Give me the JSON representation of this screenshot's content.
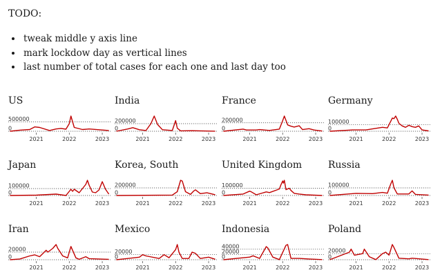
{
  "todo": {
    "title": "TODO:",
    "items": [
      "tweak middle y axis line",
      "mark lockdow day as vertical lines",
      "last number of total cases for each one and last day too"
    ]
  },
  "colors": {
    "line": "#c00000",
    "reference_line": "#333333",
    "text": "#1a1a1a"
  },
  "chart_data": [
    {
      "type": "line",
      "title": "US",
      "xticks": [
        "2021",
        "2022",
        "2023"
      ],
      "yticks": [
        0,
        500000
      ],
      "x": [
        2020.2,
        2020.5,
        2020.8,
        2020.95,
        2021.1,
        2021.4,
        2021.6,
        2021.75,
        2021.9,
        2022.0,
        2022.05,
        2022.15,
        2022.4,
        2022.6,
        2022.9,
        2023.2
      ],
      "y": [
        0,
        60000,
        90000,
        230000,
        200000,
        40000,
        120000,
        150000,
        110000,
        400000,
        800000,
        200000,
        90000,
        120000,
        80000,
        40000
      ],
      "ylim": [
        0,
        800000
      ]
    },
    {
      "type": "line",
      "title": "India",
      "xticks": [
        "2021",
        "2022",
        "2023"
      ],
      "yticks": [
        0,
        200000
      ],
      "x": [
        2020.2,
        2020.55,
        2020.7,
        2020.9,
        2021.1,
        2021.25,
        2021.35,
        2021.45,
        2021.6,
        2021.9,
        2022.0,
        2022.05,
        2022.15,
        2022.5,
        2023.2
      ],
      "y": [
        0,
        60000,
        95000,
        40000,
        20000,
        200000,
        400000,
        180000,
        40000,
        20000,
        280000,
        80000,
        10000,
        15000,
        2000
      ],
      "ylim": [
        0,
        400000
      ]
    },
    {
      "type": "line",
      "title": "France",
      "xticks": [
        "2021",
        "2022",
        "2023"
      ],
      "yticks": [
        0,
        200000
      ],
      "x": [
        2020.2,
        2020.8,
        2020.9,
        2021.2,
        2021.3,
        2021.6,
        2021.9,
        2022.0,
        2022.05,
        2022.15,
        2022.25,
        2022.35,
        2022.5,
        2022.6,
        2022.8,
        2022.95,
        2023.2
      ],
      "y": [
        0,
        50000,
        30000,
        30000,
        40000,
        20000,
        50000,
        250000,
        360000,
        150000,
        120000,
        100000,
        130000,
        40000,
        60000,
        30000,
        5000
      ],
      "ylim": [
        0,
        360000
      ]
    },
    {
      "type": "line",
      "title": "Germany",
      "xticks": [
        "2021",
        "2022",
        "2023"
      ],
      "yticks": [
        0,
        100000
      ],
      "x": [
        2020.2,
        2020.9,
        2021.3,
        2021.8,
        2021.95,
        2022.05,
        2022.1,
        2022.15,
        2022.2,
        2022.25,
        2022.3,
        2022.4,
        2022.5,
        2022.6,
        2022.7,
        2022.8,
        2022.9,
        2023.0,
        2023.2
      ],
      "y": [
        0,
        20000,
        20000,
        60000,
        50000,
        150000,
        200000,
        190000,
        230000,
        180000,
        120000,
        80000,
        60000,
        90000,
        70000,
        60000,
        80000,
        20000,
        5000
      ],
      "ylim": [
        0,
        230000
      ]
    },
    {
      "type": "line",
      "title": "Japan",
      "xticks": [
        "2021",
        "2022",
        "2023"
      ],
      "yticks": [
        0,
        100000
      ],
      "x": [
        2020.2,
        2021.0,
        2021.6,
        2021.9,
        2022.05,
        2022.1,
        2022.15,
        2022.3,
        2022.5,
        2022.55,
        2022.6,
        2022.7,
        2022.8,
        2022.9,
        2023.0,
        2023.1,
        2023.2
      ],
      "y": [
        0,
        5000,
        20000,
        0,
        90000,
        60000,
        90000,
        40000,
        160000,
        220000,
        150000,
        50000,
        40000,
        80000,
        200000,
        90000,
        20000
      ],
      "ylim": [
        0,
        220000
      ]
    },
    {
      "type": "line",
      "title": "Korea, South",
      "xticks": [
        "2021",
        "2022",
        "2023"
      ],
      "yticks": [
        0,
        200000
      ],
      "x": [
        2020.2,
        2021.9,
        2022.05,
        2022.15,
        2022.2,
        2022.3,
        2022.45,
        2022.55,
        2022.6,
        2022.75,
        2022.95,
        2023.2
      ],
      "y": [
        0,
        10000,
        100000,
        400000,
        380000,
        100000,
        30000,
        120000,
        150000,
        50000,
        70000,
        20000
      ],
      "ylim": [
        0,
        400000
      ]
    },
    {
      "type": "line",
      "title": "United Kingdom",
      "xticks": [
        "2021",
        "2022",
        "2023"
      ],
      "yticks": [
        0,
        100000
      ],
      "x": [
        2020.2,
        2020.8,
        2021.0,
        2021.05,
        2021.2,
        2021.5,
        2021.6,
        2021.9,
        2021.95,
        2022.0,
        2022.02,
        2022.05,
        2022.1,
        2022.2,
        2022.25,
        2022.35,
        2022.5,
        2022.7,
        2023.2
      ],
      "y": [
        0,
        20000,
        60000,
        50000,
        10000,
        50000,
        40000,
        90000,
        150000,
        200000,
        170000,
        210000,
        80000,
        100000,
        70000,
        30000,
        20000,
        10000,
        0
      ],
      "ylim": [
        0,
        210000
      ]
    },
    {
      "type": "line",
      "title": "Russia",
      "xticks": [
        "2021",
        "2022",
        "2023"
      ],
      "yticks": [
        0,
        100000
      ],
      "x": [
        2020.2,
        2020.9,
        2021.0,
        2021.5,
        2021.8,
        2021.95,
        2022.05,
        2022.1,
        2022.15,
        2022.25,
        2022.6,
        2022.7,
        2022.8,
        2023.2
      ],
      "y": [
        0,
        25000,
        28000,
        25000,
        40000,
        30000,
        150000,
        200000,
        100000,
        20000,
        20000,
        60000,
        15000,
        5000
      ],
      "ylim": [
        0,
        200000
      ]
    },
    {
      "type": "line",
      "title": "Iran",
      "xticks": [
        "2021",
        "2022",
        "2023"
      ],
      "yticks": [
        0,
        20000
      ],
      "x": [
        2020.2,
        2020.5,
        2020.8,
        2020.95,
        2021.1,
        2021.3,
        2021.35,
        2021.5,
        2021.6,
        2021.65,
        2021.8,
        2021.95,
        2022.05,
        2022.1,
        2022.2,
        2022.3,
        2022.5,
        2022.6,
        2023.2
      ],
      "y": [
        0,
        2000,
        10000,
        13000,
        8000,
        25000,
        20000,
        30000,
        40000,
        30000,
        10000,
        5000,
        35000,
        25000,
        5000,
        1000,
        8000,
        3000,
        1000
      ],
      "ylim": [
        0,
        40000
      ]
    },
    {
      "type": "line",
      "title": "Mexico",
      "xticks": [
        "2021",
        "2022",
        "2023"
      ],
      "yticks": [
        0,
        20000
      ],
      "x": [
        2020.2,
        2020.55,
        2020.9,
        2021.0,
        2021.1,
        2021.5,
        2021.65,
        2021.8,
        2022.0,
        2022.05,
        2022.1,
        2022.2,
        2022.4,
        2022.5,
        2022.6,
        2022.75,
        2023.0,
        2023.2
      ],
      "y": [
        0,
        5000,
        10000,
        20000,
        15000,
        5000,
        20000,
        8000,
        40000,
        60000,
        30000,
        5000,
        5000,
        30000,
        25000,
        5000,
        10000,
        2000
      ],
      "ylim": [
        0,
        60000
      ]
    },
    {
      "type": "line",
      "title": "Indonesia",
      "xticks": [
        "2021",
        "2022",
        "2023"
      ],
      "yticks": [
        0,
        20000,
        40000
      ],
      "x": [
        2020.2,
        2021.0,
        2021.1,
        2021.3,
        2021.5,
        2021.55,
        2021.7,
        2021.9,
        2022.1,
        2022.15,
        2022.25,
        2022.5,
        2022.8,
        2023.2
      ],
      "y": [
        0,
        10000,
        15000,
        5000,
        50000,
        45000,
        10000,
        500,
        55000,
        58000,
        5000,
        5000,
        3000,
        500
      ],
      "ylim": [
        0,
        58000
      ]
    },
    {
      "type": "line",
      "title": "Poland",
      "xticks": [
        "2021",
        "2022",
        "2023"
      ],
      "yticks": [
        0,
        20000
      ],
      "x": [
        2020.2,
        2020.8,
        2020.85,
        2020.95,
        2021.2,
        2021.25,
        2021.4,
        2021.6,
        2021.8,
        2021.9,
        2022.0,
        2022.1,
        2022.15,
        2022.3,
        2022.6,
        2022.7,
        2023.2
      ],
      "y": [
        0,
        25000,
        35000,
        15000,
        20000,
        35000,
        10000,
        500,
        20000,
        25000,
        15000,
        50000,
        40000,
        5000,
        3000,
        5000,
        500
      ],
      "ylim": [
        0,
        50000
      ]
    }
  ]
}
